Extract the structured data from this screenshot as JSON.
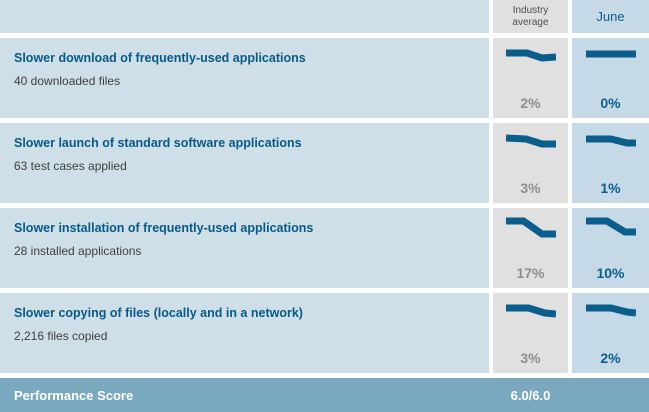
{
  "header": {
    "industry_label": "Industry average",
    "june_label": "June"
  },
  "rows": [
    {
      "title": "Slower download of frequently-used applications",
      "subtitle": "40 downloaded files",
      "industry": {
        "value": "2%",
        "spark": [
          [
            0,
            8
          ],
          [
            0.42,
            8
          ],
          [
            0.72,
            13
          ],
          [
            1,
            12
          ]
        ]
      },
      "june": {
        "value": "0%",
        "spark": [
          [
            0,
            9
          ],
          [
            1,
            9
          ]
        ]
      }
    },
    {
      "title": "Slower launch of standard software applications",
      "subtitle": "63 test cases applied",
      "industry": {
        "value": "3%",
        "spark": [
          [
            0,
            8
          ],
          [
            0.4,
            9
          ],
          [
            0.72,
            14
          ],
          [
            1,
            14
          ]
        ]
      },
      "june": {
        "value": "1%",
        "spark": [
          [
            0,
            9
          ],
          [
            0.5,
            9
          ],
          [
            0.82,
            13
          ],
          [
            1,
            13
          ]
        ]
      }
    },
    {
      "title": "Slower installation of frequently-used applications",
      "subtitle": "28 installed applications",
      "industry": {
        "value": "17%",
        "spark": [
          [
            0,
            6
          ],
          [
            0.35,
            6
          ],
          [
            0.72,
            19
          ],
          [
            1,
            19
          ]
        ]
      },
      "june": {
        "value": "10%",
        "spark": [
          [
            0,
            6
          ],
          [
            0.42,
            6
          ],
          [
            0.78,
            17
          ],
          [
            1,
            17
          ]
        ]
      }
    },
    {
      "title": "Slower copying of files (locally and in a network)",
      "subtitle": "2,216 files copied",
      "industry": {
        "value": "3%",
        "spark": [
          [
            0,
            8
          ],
          [
            0.45,
            8
          ],
          [
            0.78,
            13
          ],
          [
            1,
            14
          ]
        ]
      },
      "june": {
        "value": "2%",
        "spark": [
          [
            0,
            8
          ],
          [
            0.5,
            8
          ],
          [
            0.82,
            12
          ],
          [
            1,
            13
          ]
        ]
      }
    }
  ],
  "footer": {
    "label": "Performance Score",
    "score": "6.0/6.0"
  },
  "colors": {
    "row_bg": "#cfdfe7",
    "industry_col_bg": "#e0e0e0",
    "june_col_bg": "#c5dae6",
    "accent_dark_blue": "#0b5d8c",
    "title_blue": "#075a88",
    "industry_value_gray": "#8e8e8e",
    "footer_bg": "#7aa8be"
  }
}
